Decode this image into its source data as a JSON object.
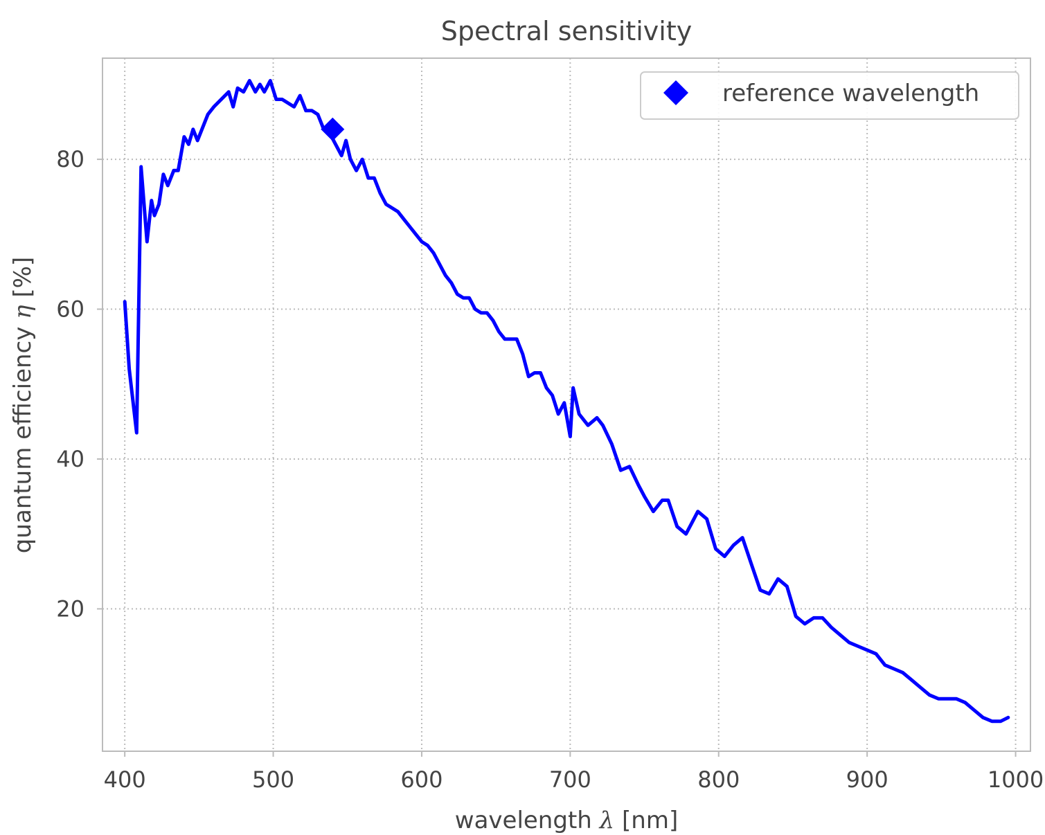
{
  "chart_data": {
    "type": "line",
    "title": "Spectral sensitivity",
    "xlabel": "wavelength",
    "xlabel_symbol": "λ",
    "xlabel_unit": "[nm]",
    "ylabel": "quantum efficiency",
    "ylabel_symbol": "η",
    "ylabel_unit": "[%]",
    "xlim": [
      385,
      1010
    ],
    "ylim": [
      1,
      93.5
    ],
    "xticks": [
      400,
      500,
      600,
      700,
      800,
      900,
      1000
    ],
    "yticks": [
      20,
      40,
      60,
      80
    ],
    "grid": true,
    "legend": {
      "position": "top-right",
      "entries": [
        "reference wavelength"
      ]
    },
    "colors": {
      "series": "#0000ff",
      "grid": "#bbbbbb",
      "frame": "#bbbbbb",
      "text": "#444444"
    },
    "series": [
      {
        "name": "",
        "marker": "none",
        "x": [
          400,
          403,
          408,
          411,
          415,
          418,
          420,
          423,
          426,
          429,
          433,
          436,
          440,
          443,
          446,
          449,
          452,
          456,
          460,
          465,
          470,
          473,
          476,
          480,
          484,
          488,
          491,
          494,
          498,
          502,
          506,
          510,
          514,
          518,
          522,
          526,
          530,
          534,
          538,
          542,
          546,
          549,
          552,
          556,
          560,
          564,
          568,
          572,
          576,
          580,
          584,
          588,
          592,
          596,
          600,
          604,
          608,
          612,
          616,
          620,
          624,
          628,
          632,
          636,
          640,
          644,
          648,
          652,
          656,
          660,
          664,
          668,
          672,
          676,
          680,
          684,
          688,
          692,
          696,
          700,
          702,
          706,
          712,
          718,
          722,
          728,
          734,
          740,
          746,
          750,
          756,
          762,
          766,
          772,
          778,
          782,
          786,
          792,
          798,
          804,
          810,
          816,
          822,
          828,
          834,
          840,
          846,
          852,
          858,
          864,
          870,
          876,
          882,
          888,
          894,
          900,
          906,
          912,
          918,
          924,
          930,
          936,
          942,
          948,
          954,
          960,
          966,
          972,
          978,
          984,
          990,
          995
        ],
        "y": [
          61,
          52,
          43.5,
          79,
          69,
          74.5,
          72.5,
          74,
          78,
          76.5,
          78.5,
          78.5,
          83,
          82,
          84,
          82.5,
          84,
          86,
          87,
          88,
          89,
          87,
          89.5,
          89,
          90.5,
          89,
          90,
          89,
          90.5,
          88,
          88,
          87.5,
          87,
          88.5,
          86.5,
          86.5,
          86,
          84,
          83.5,
          82,
          80.5,
          82.5,
          80,
          78.5,
          80,
          77.5,
          77.5,
          75.5,
          74,
          73.5,
          73,
          72,
          71,
          70,
          69,
          68.5,
          67.5,
          66,
          64.5,
          63.5,
          62,
          61.5,
          61.5,
          60,
          59.5,
          59.5,
          58.5,
          57,
          56,
          56,
          56,
          54,
          51,
          51.5,
          51.5,
          49.5,
          48.5,
          46,
          47.5,
          43,
          49.5,
          46,
          44.5,
          45.5,
          44.5,
          42,
          38.5,
          39,
          36.5,
          35,
          33,
          34.5,
          34.5,
          31,
          30,
          31.5,
          33,
          32,
          28,
          27,
          28.5,
          29.5,
          26,
          22.5,
          22,
          24,
          23,
          19,
          18,
          18.8,
          18.8,
          17.5,
          16.5,
          15.5,
          15,
          14.5,
          14,
          12.5,
          12,
          11.5,
          10.5,
          9.5,
          8.5,
          8,
          8,
          8,
          7.5,
          6.5,
          5.5,
          5,
          5,
          5.5
        ]
      },
      {
        "name": "reference wavelength",
        "marker": "diamond",
        "x": [
          540
        ],
        "y": [
          84
        ]
      }
    ]
  }
}
